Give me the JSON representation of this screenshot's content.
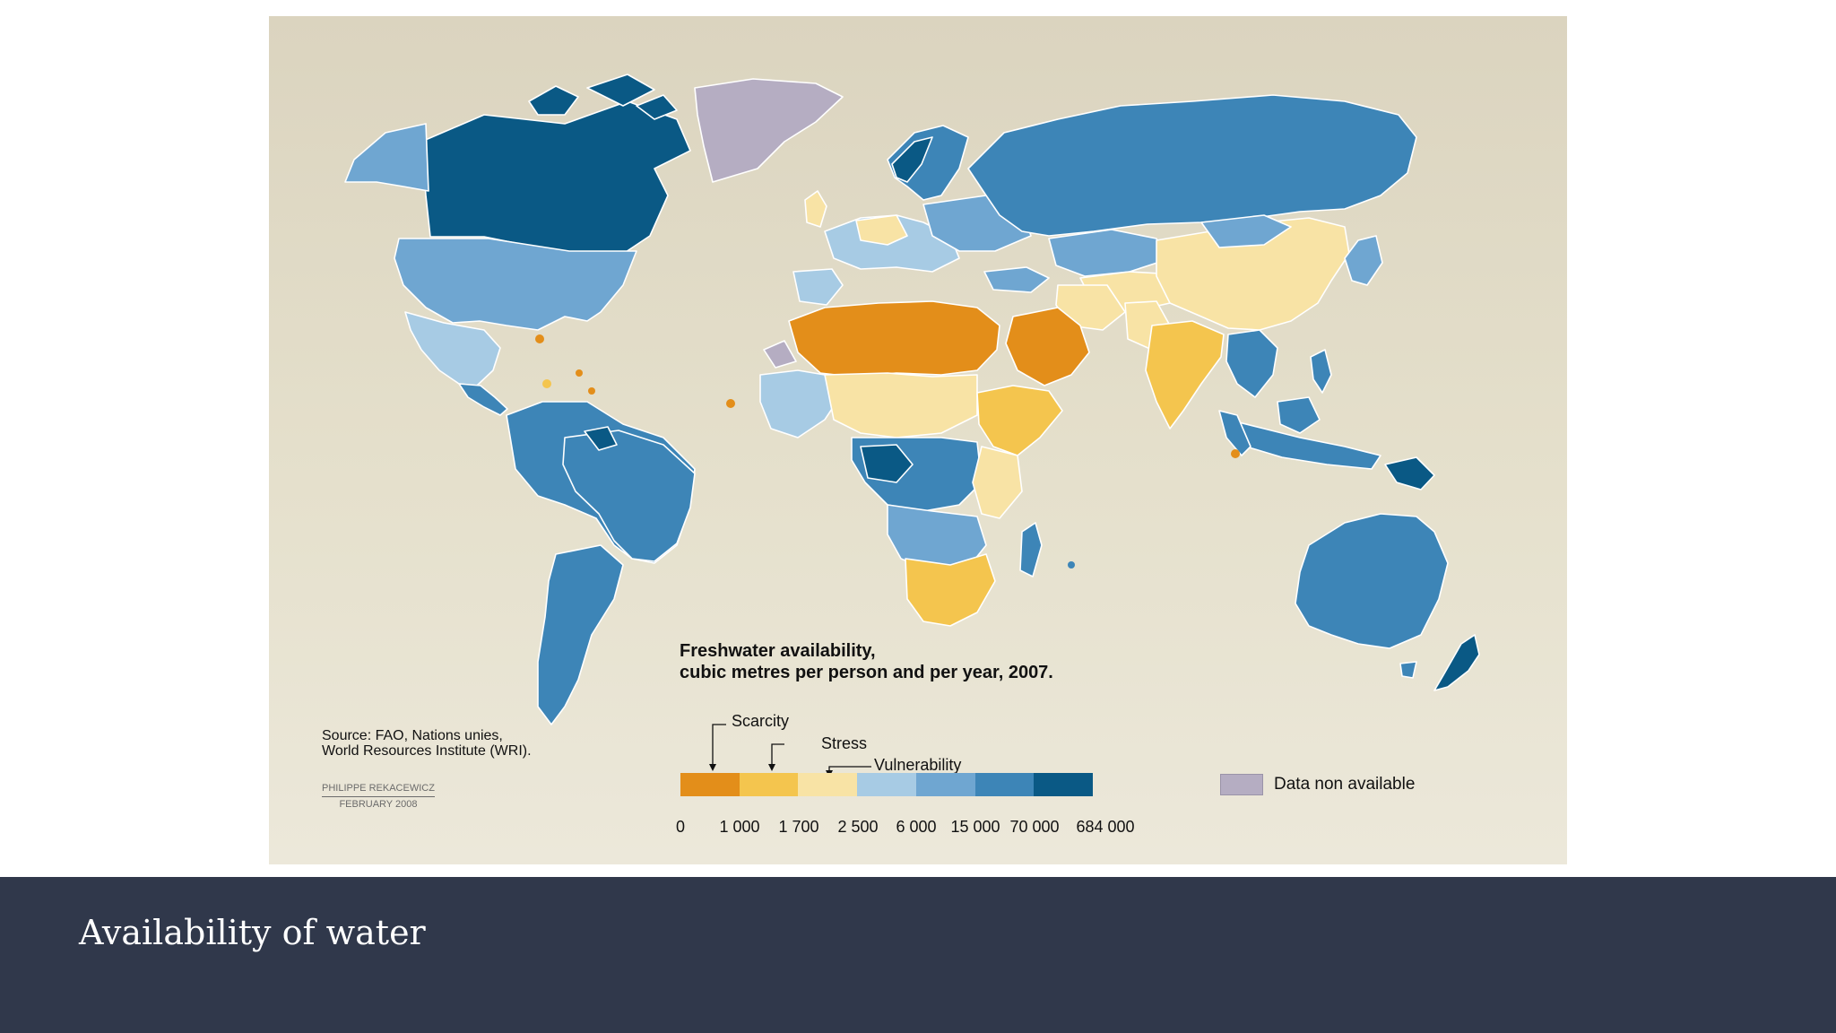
{
  "colors": {
    "scarcity_1": "#e38e1a",
    "scarcity_2": "#f4c54e",
    "stress": "#f8e3a5",
    "vulnerability_band": "#a7cbe4",
    "b6000": "#6fa6d1",
    "b15000": "#3d85b7",
    "b70000": "#0a5985",
    "no_data": "#b5adc2",
    "caption_bg": "#30384b"
  },
  "legend": {
    "title_line1": "Freshwater availability,",
    "title_line2": "cubic metres per person and per year, 2007.",
    "scarcity_label": "Scarcity",
    "stress_label": "Stress",
    "vulnerability_label": "Vulnerability",
    "ticks": [
      "0",
      "1 000",
      "1 700",
      "2 500",
      "6 000",
      "15 000",
      "70 000",
      "684 000"
    ],
    "no_data_label": "Data non available"
  },
  "source": {
    "line1": "Source: FAO, Nations unies,",
    "line2": "World Resources Institute (WRI)."
  },
  "credit": {
    "author": "PHILIPPE REKACEWICZ",
    "date": "FEBRUARY 2008"
  },
  "caption": "Availability of water"
}
